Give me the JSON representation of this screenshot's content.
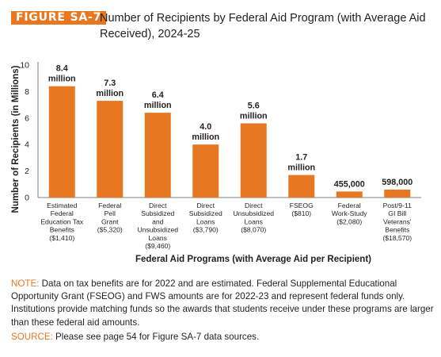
{
  "figure": {
    "label": "FIGURE SA-7",
    "title": "Number of Recipients by Federal Aid Program (with Average Aid Received), 2024-25"
  },
  "colors": {
    "accent": "#e87722",
    "bar": "#e87722",
    "text": "#231f20",
    "axis": "#7f7f7f"
  },
  "chart_data": {
    "type": "bar",
    "ylabel": "Number of Recipients (in Millions)",
    "xlabel": "Federal Aid Programs (with Average Aid per Recipient)",
    "ylim": [
      0,
      10
    ],
    "yticks": [
      0,
      2,
      4,
      6,
      8,
      10
    ],
    "grid": false,
    "categories": [
      [
        "Estimated",
        "Federal",
        "Education Tax",
        "Benefits",
        "($1,410)"
      ],
      [
        "Federal",
        "Pell",
        "Grant",
        "($5,320)"
      ],
      [
        "Direct",
        "Subsidized",
        "and",
        "Unsubsidized",
        "Loans",
        "($9,460)"
      ],
      [
        "Direct",
        "Subsidized",
        "Loans",
        "($3,790)"
      ],
      [
        "Direct",
        "Unsubsidized",
        "Loans",
        "($8,070)"
      ],
      [
        "FSEOG",
        "($810)"
      ],
      [
        "Federal",
        "Work-Study",
        "($2,080)"
      ],
      [
        "Post/9-11",
        "GI Bill",
        "Veterans'",
        "Benefits",
        "($18,570)"
      ]
    ],
    "values": [
      8.4,
      7.3,
      6.4,
      4.0,
      5.6,
      1.7,
      0.455,
      0.598
    ],
    "data_labels": [
      [
        "8.4",
        "million"
      ],
      [
        "7.3",
        "million"
      ],
      [
        "6.4",
        "million"
      ],
      [
        "4.0",
        "million"
      ],
      [
        "5.6",
        "million"
      ],
      [
        "1.7",
        "million"
      ],
      [
        "455,000"
      ],
      [
        "598,000"
      ]
    ]
  },
  "note": {
    "label": "NOTE:",
    "text": " Data on tax benefits are for 2022 and are estimated. Federal Supplemental Educational Opportunity Grant (FSEOG) and FWS amounts are for 2022-23 and represent federal funds only. Institutions provide matching funds so the awards that students receive under these programs are larger than these federal aid amounts."
  },
  "source": {
    "label": "SOURCE:",
    "text": " Please see page 54 for Figure SA-7 data sources."
  }
}
